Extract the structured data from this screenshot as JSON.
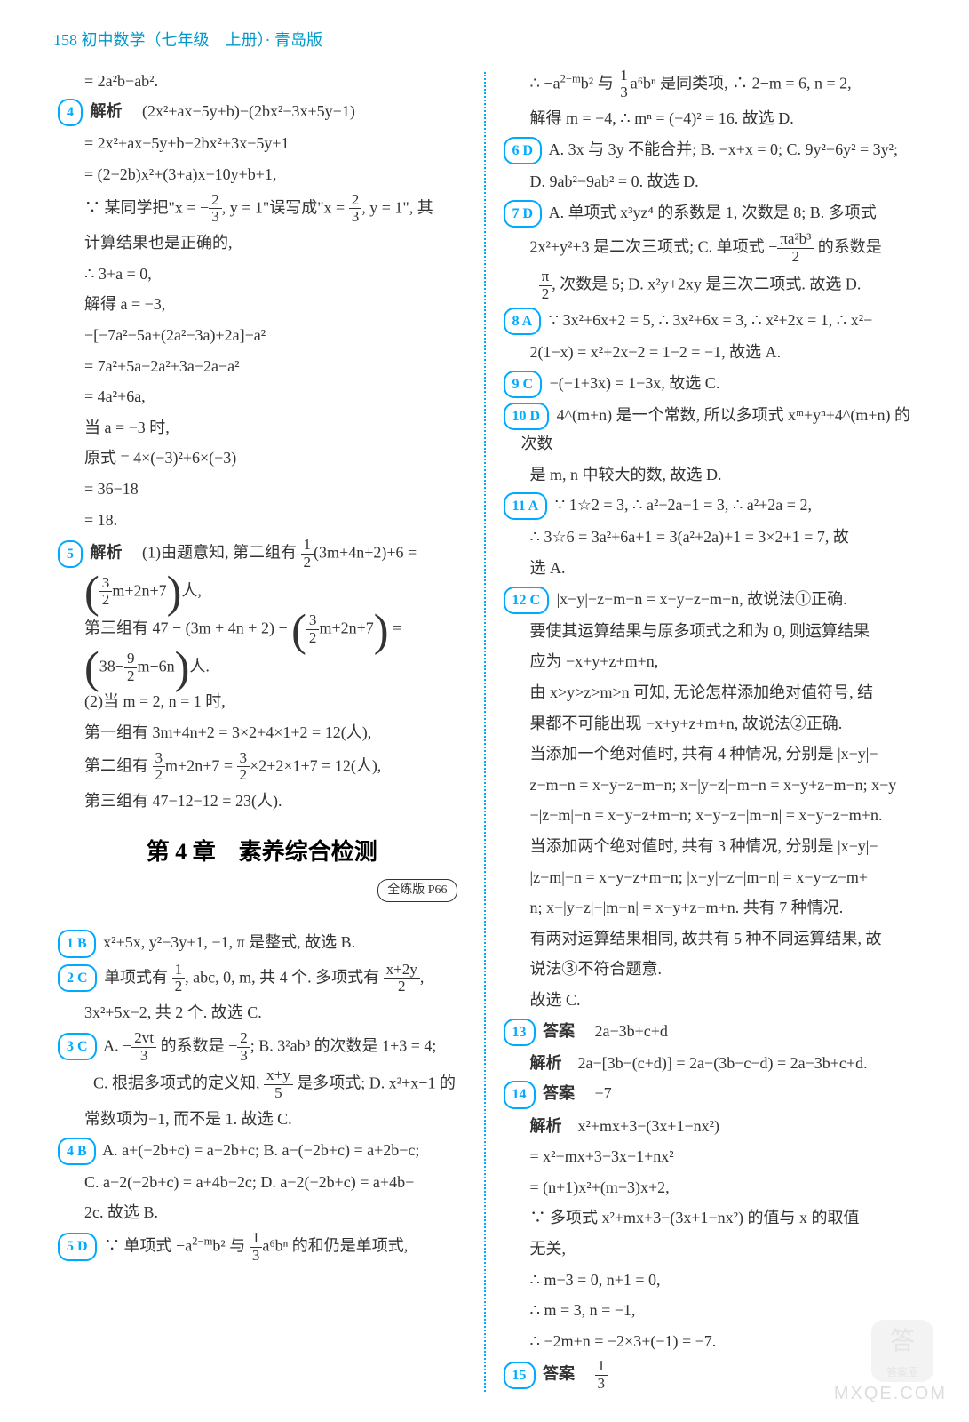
{
  "header": {
    "pageNum": "158",
    "title": "初中数学（七年级　上册）· 青岛版"
  },
  "left": {
    "l1": "= 2a²b−ab².",
    "p4": {
      "num": "4",
      "label": "解析"
    },
    "l2": "(2x²+ax−5y+b)−(2bx²−3x+5y−1)",
    "l3": "= 2x²+ax−5y+b−2bx²+3x−5y+1",
    "l4": "= (2−2b)x²+(3+a)x−10y+b+1,",
    "l5a": "∵ 某同学把\"x = −",
    "l5b": ", y = 1\"误写成\"x = ",
    "l5c": ", y = 1\", 其",
    "l6": "计算结果也是正确的,",
    "l7": "∴ 3+a = 0,",
    "l8": "解得 a = −3,",
    "l9": "−[−7a²−5a+(2a²−3a)+2a]−a²",
    "l10": "= 7a²+5a−2a²+3a−2a−a²",
    "l11": "= 4a²+6a,",
    "l12": "当 a = −3 时,",
    "l13": "原式 = 4×(−3)²+6×(−3)",
    "l14": "= 36−18",
    "l15": "= 18.",
    "p5": {
      "num": "5",
      "label": "解析"
    },
    "l16a": "(1)由题意知, 第二组有 ",
    "l16b": "(3m+4n+2)+6 =",
    "l17a": "m+2n+7",
    "l17b": "人,",
    "l18a": "第三组有 47 − (3m + 4n + 2) − ",
    "l18b": "m+2n+7",
    "l18c": " =",
    "l19a": "38−",
    "l19b": "m−6n",
    "l19c": "人.",
    "l20": "(2)当 m = 2, n = 1 时,",
    "l21": "第一组有 3m+4n+2 = 3×2+4×1+2 = 12(人),",
    "l22a": "第二组有 ",
    "l22b": "m+2n+7 = ",
    "l22c": "×2+2×1+7 = 12(人),",
    "l23": "第三组有 47−12−12 = 23(人).",
    "chapter": "第 4 章　素养综合检测",
    "ref": "全练版 P66",
    "p1b": {
      "num": "1 B"
    },
    "l24": " x²+5x, y²−3y+1, −1, π 是整式, 故选 B.",
    "p2c": {
      "num": "2 C"
    },
    "l25a": " 单项式有 ",
    "l25b": ", abc, 0, m, 共 4 个. 多项式有 ",
    "l25c": ",",
    "l26": "3x²+5x−2, 共 2 个. 故选 C.",
    "p3c": {
      "num": "3 C"
    },
    "l27a": " A. −",
    "l27b": " 的系数是 −",
    "l27c": "; B. 3²ab³ 的次数是 1+3 = 4;",
    "l28a": "C. 根据多项式的定义知, ",
    "l28b": " 是多项式; D. x²+x−1 的",
    "l29": "常数项为−1, 而不是 1. 故选 C.",
    "p4b": {
      "num": "4 B"
    },
    "l30": " A. a+(−2b+c) = a−2b+c; B. a−(−2b+c) = a+2b−c;",
    "l31": "C. a−2(−2b+c) = a+4b−2c; D. a−2(−2b+c) = a+4b−",
    "l32": "2c. 故选 B.",
    "p5d": {
      "num": "5 D"
    },
    "l33a": " ∵ 单项式 −a",
    "l33b": "b² 与 ",
    "l33c": "a⁶bⁿ 的和仍是单项式,"
  },
  "right": {
    "r1a": "∴ −a",
    "r1b": "b² 与 ",
    "r1c": "a⁶bⁿ 是同类项, ∴ 2−m = 6, n = 2,",
    "r2": "解得 m = −4, ∴ mⁿ = (−4)² = 16. 故选 D.",
    "p6d": {
      "num": "6 D"
    },
    "r3": " A. 3x 与 3y 不能合并; B. −x+x = 0; C. 9y²−6y² = 3y²;",
    "r4": "D. 9ab²−9ab² = 0. 故选 D.",
    "p7d": {
      "num": "7 D"
    },
    "r5": " A. 单项式 x³yz⁴ 的系数是 1, 次数是 8; B. 多项式",
    "r6a": "2x²+y²+3 是二次三项式; C. 单项式 −",
    "r6b": " 的系数是",
    "r7a": "−",
    "r7b": ", 次数是 5; D. x²y+2xy 是三次二项式. 故选 D.",
    "p8a": {
      "num": "8 A"
    },
    "r8": " ∵ 3x²+6x+2 = 5, ∴ 3x²+6x = 3, ∴ x²+2x = 1, ∴ x²−",
    "r9": "2(1−x) = x²+2x−2 = 1−2 = −1, 故选 A.",
    "p9c": {
      "num": "9 C"
    },
    "r10": " −(−1+3x) = 1−3x, 故选 C.",
    "p10d": {
      "num": "10 D"
    },
    "r11": " 4^(m+n) 是一个常数, 所以多项式 xᵐ+yⁿ+4^(m+n) 的次数",
    "r12": "是 m, n 中较大的数, 故选 D.",
    "p11a": {
      "num": "11 A"
    },
    "r13": " ∵ 1☆2 = 3, ∴ a²+2a+1 = 3, ∴ a²+2a = 2,",
    "r14": "∴ 3☆6 = 3a²+6a+1 = 3(a²+2a)+1 = 3×2+1 = 7, 故",
    "r15": "选 A.",
    "p12c": {
      "num": "12 C"
    },
    "r16": " |x−y|−z−m−n = x−y−z−m−n, 故说法①正确.",
    "r17": "要使其运算结果与原多项式之和为 0, 则运算结果",
    "r18": "应为 −x+y+z+m+n,",
    "r19": "由 x>y>z>m>n 可知, 无论怎样添加绝对值符号, 结",
    "r20": "果都不可能出现 −x+y+z+m+n, 故说法②正确.",
    "r21": "当添加一个绝对值时, 共有 4 种情况, 分别是 |x−y|−",
    "r22": "z−m−n = x−y−z−m−n; x−|y−z|−m−n = x−y+z−m−n; x−y",
    "r23": "−|z−m|−n = x−y−z+m−n; x−y−z−|m−n| = x−y−z−m+n.",
    "r24": "当添加两个绝对值时, 共有 3 种情况, 分别是 |x−y|−",
    "r25": "|z−m|−n = x−y−z+m−n; |x−y|−z−|m−n| = x−y−z−m+",
    "r26": "n; x−|y−z|−|m−n| = x−y+z−m+n. 共有 7 种情况.",
    "r27": "有两对运算结果相同, 故共有 5 种不同运算结果, 故",
    "r28": "说法③不符合题意.",
    "r29": "故选 C.",
    "p13": {
      "num": "13",
      "label": "答案"
    },
    "r30": "2a−3b+c+d",
    "r31label": "解析",
    "r31": "2a−[3b−(c+d)] = 2a−(3b−c−d) = 2a−3b+c+d.",
    "p14": {
      "num": "14",
      "label": "答案"
    },
    "r32": "−7",
    "r33label": "解析",
    "r33": "x²+mx+3−(3x+1−nx²)",
    "r34": "= x²+mx+3−3x−1+nx²",
    "r35": "= (n+1)x²+(m−3)x+2,",
    "r36": "∵ 多项式 x²+mx+3−(3x+1−nx²) 的值与 x 的取值",
    "r37": "无关,",
    "r38": "∴ m−3 = 0, n+1 = 0,",
    "r39": "∴ m = 3, n = −1,",
    "r40": "∴ −2m+n = −2×3+(−1) = −7.",
    "p15": {
      "num": "15",
      "label": "答案"
    }
  },
  "watermark": "MXQE.COM",
  "badge": "答案圈"
}
